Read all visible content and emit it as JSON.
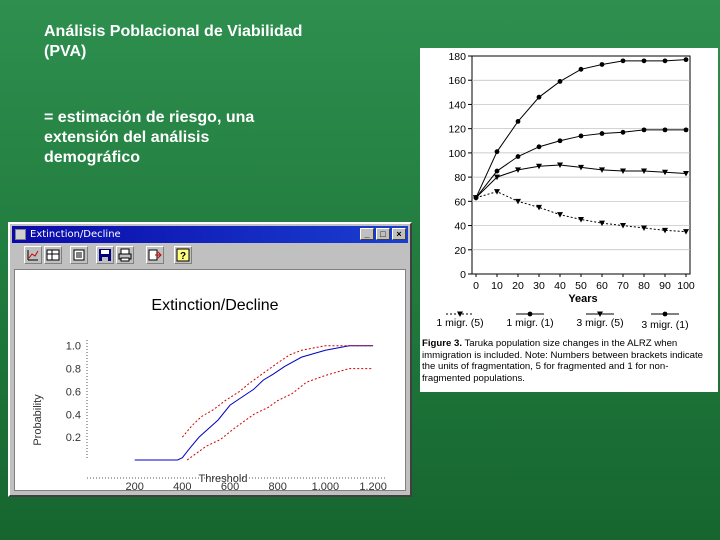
{
  "slide": {
    "title_lines": [
      "Análisis Poblacional de Viabilidad",
      "(PVA)"
    ],
    "body_lines": [
      "= estimación de riesgo, una",
      "extensión del análisis",
      "demográfico"
    ]
  },
  "app_window": {
    "title": "Extinction/Decline",
    "buttons": {
      "minimize": "_",
      "maximize": "□",
      "close": "×"
    },
    "toolbar_icons": [
      "chart-icon",
      "table-icon",
      "settings-icon",
      "save-icon",
      "print-icon",
      "export-icon",
      "help-icon"
    ],
    "help_symbol": "?"
  },
  "chart_data": [
    {
      "type": "line",
      "title": "Extinction/Decline",
      "xlabel": "Threshold",
      "ylabel": "Probability",
      "x_ticks": [
        "200",
        "400",
        "600",
        "800",
        "1,000",
        "1,200"
      ],
      "y_ticks": [
        "0.2",
        "0.4",
        "0.6",
        "0.8",
        "1.0"
      ],
      "xlim": [
        0,
        1250
      ],
      "ylim": [
        0,
        1.05
      ],
      "series": [
        {
          "style": "solid",
          "color": "#0000c0",
          "x": [
            200,
            380,
            400,
            430,
            470,
            550,
            600,
            650,
            700,
            740,
            780,
            830,
            900,
            1000,
            1100,
            1200
          ],
          "y": [
            0,
            0,
            0.02,
            0.1,
            0.2,
            0.35,
            0.48,
            0.55,
            0.62,
            0.7,
            0.75,
            0.82,
            0.9,
            0.96,
            1.0,
            1.0
          ]
        },
        {
          "style": "dotted",
          "color": "#d00000",
          "x": [
            400,
            440,
            480,
            530,
            580,
            640,
            680,
            720,
            760,
            800,
            850,
            900,
            1000,
            1100,
            1200
          ],
          "y": [
            0.2,
            0.3,
            0.38,
            0.44,
            0.52,
            0.6,
            0.67,
            0.73,
            0.79,
            0.85,
            0.92,
            0.96,
            1.0,
            1.0,
            1.0
          ]
        },
        {
          "style": "dotted",
          "color": "#d00000",
          "x": [
            420,
            460,
            500,
            560,
            620,
            660,
            700,
            760,
            800,
            860,
            920,
            1000,
            1100,
            1200
          ],
          "y": [
            0.0,
            0.06,
            0.12,
            0.18,
            0.28,
            0.34,
            0.4,
            0.46,
            0.52,
            0.58,
            0.68,
            0.74,
            0.8,
            0.8
          ]
        }
      ]
    },
    {
      "type": "line",
      "xlabel": "Years",
      "ylabel": "",
      "x": [
        0,
        10,
        20,
        30,
        40,
        50,
        60,
        70,
        80,
        90,
        100
      ],
      "x_ticks": [
        "0",
        "10",
        "20",
        "30",
        "40",
        "50",
        "60",
        "70",
        "80",
        "90",
        "100"
      ],
      "y_ticks": [
        "0",
        "20",
        "40",
        "60",
        "80",
        "100",
        "120",
        "140",
        "160",
        "180"
      ],
      "ylim": [
        0,
        180
      ],
      "legend_placement": "bottom",
      "series": [
        {
          "name": "1 migr. (5)",
          "marker": "triangle-down",
          "style": "dotted",
          "values": [
            63,
            68,
            60,
            55,
            49,
            45,
            42,
            40,
            38,
            36,
            35
          ]
        },
        {
          "name": "1 migr. (1)",
          "marker": "circle",
          "style": "solid",
          "values": [
            63,
            85,
            97,
            105,
            110,
            114,
            116,
            117,
            119,
            119,
            119
          ]
        },
        {
          "name": "3 migr. (5)",
          "marker": "triangle-down",
          "style": "solid",
          "values": [
            63,
            80,
            86,
            89,
            90,
            88,
            86,
            85,
            85,
            84,
            83
          ]
        },
        {
          "name": "3 migr. (1)",
          "marker": "circle",
          "style": "solid",
          "values": [
            63,
            101,
            126,
            146,
            159,
            169,
            173,
            176,
            176,
            176,
            177
          ]
        }
      ]
    }
  ],
  "figure": {
    "caption_label": "Figure 3.",
    "caption_text": " Taruka population size changes in the ALRZ when immigration is included. Note: Numbers between brackets indicate the units of fragmentation, 5 for fragmented and 1 for non-fragmented populations."
  }
}
